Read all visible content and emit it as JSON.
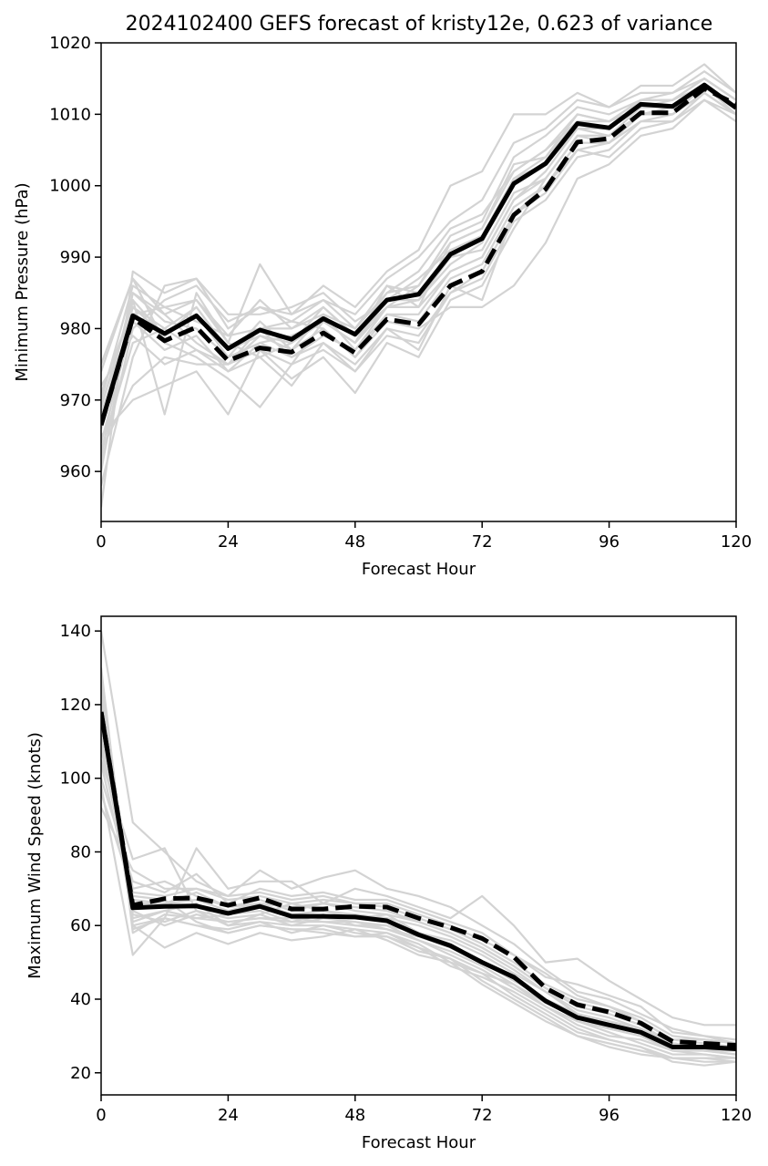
{
  "title": "2024102400 GEFS forecast of kristy12e, 0.623 of variance",
  "colors": {
    "member": "#d3d3d3",
    "highlight": "#000000",
    "frame": "#000000"
  },
  "chart_data": [
    {
      "type": "line",
      "xlabel": "Forecast Hour",
      "ylabel": "Minimum Pressure (hPa)",
      "xlim": [
        0,
        120
      ],
      "ylim": [
        953,
        1020
      ],
      "xticks": [
        0,
        24,
        48,
        72,
        96,
        120
      ],
      "yticks": [
        960,
        970,
        980,
        990,
        1000,
        1010,
        1020
      ],
      "x": [
        0,
        6,
        12,
        18,
        24,
        30,
        36,
        42,
        48,
        54,
        60,
        66,
        72,
        78,
        84,
        90,
        96,
        102,
        108,
        114,
        120
      ],
      "series": [
        {
          "style": "solid",
          "values": [
            966.5,
            981.8,
            979.3,
            981.8,
            977.2,
            979.8,
            978.5,
            981.4,
            979.2,
            984.0,
            984.8,
            990.4,
            992.6,
            1000.3,
            1003.1,
            1008.7,
            1008.1,
            1011.4,
            1011.1,
            1014.1,
            1010.9
          ]
        },
        {
          "style": "dashed",
          "values": [
            966.5,
            981.5,
            978.3,
            980.2,
            975.5,
            977.3,
            976.7,
            979.4,
            976.6,
            981.3,
            980.6,
            986.0,
            988.0,
            995.9,
            999.5,
            1006.1,
            1006.6,
            1010.2,
            1010.2,
            1013.6,
            1011.4
          ]
        },
        {
          "style": "member",
          "values": [
            955,
            988,
            985,
            987,
            980,
            983,
            982,
            984,
            982,
            987,
            990,
            995,
            998,
            1006,
            1008,
            1012,
            1011,
            1013,
            1013,
            1016,
            1013
          ]
        },
        {
          "style": "member",
          "values": [
            960,
            984,
            968,
            985,
            978,
            976,
            978,
            983,
            979,
            983,
            986,
            993,
            995,
            1004,
            1007,
            1011,
            1010,
            1012,
            1013,
            1015,
            1012
          ]
        },
        {
          "style": "member",
          "values": [
            963,
            972,
            976,
            975,
            975,
            980,
            981,
            980,
            976,
            982,
            982,
            988,
            990,
            998,
            1002,
            1008,
            1008,
            1011,
            1011,
            1014,
            1011
          ]
        },
        {
          "style": "member",
          "values": [
            970,
            986,
            983,
            984,
            978,
            989,
            982,
            986,
            983,
            988,
            991,
            1000,
            1002,
            1010,
            1010,
            1013,
            1011,
            1014,
            1014,
            1017,
            1013
          ]
        },
        {
          "style": "member",
          "values": [
            975,
            987,
            978,
            976,
            973,
            969,
            975,
            981,
            978,
            986,
            983,
            992,
            994,
            1003,
            1004,
            1009,
            1009,
            1011,
            1012,
            1015,
            1012
          ]
        },
        {
          "style": "member",
          "values": [
            965,
            970,
            972,
            974,
            968,
            977,
            973,
            976,
            971,
            978,
            976,
            984,
            986,
            994,
            1001,
            1007,
            1007,
            1010,
            1010,
            1014,
            1010
          ]
        },
        {
          "style": "member",
          "values": [
            968,
            982,
            983,
            981,
            979,
            984,
            980,
            982,
            980,
            985,
            988,
            994,
            996,
            1002,
            1005,
            1009,
            1008,
            1012,
            1012,
            1014,
            1011
          ]
        },
        {
          "style": "member",
          "values": [
            962,
            985,
            981,
            980,
            976,
            978,
            979,
            981,
            978,
            983,
            984,
            989,
            992,
            1001,
            1004,
            1010,
            1009,
            1012,
            1012,
            1015,
            1012
          ]
        },
        {
          "style": "member",
          "values": [
            972,
            979,
            975,
            977,
            974,
            976,
            972,
            978,
            974,
            980,
            977,
            986,
            984,
            996,
            999,
            1005,
            1006,
            1009,
            1010,
            1013,
            1010
          ]
        },
        {
          "style": "member",
          "values": [
            966,
            983,
            980,
            983,
            977,
            980,
            976,
            979,
            977,
            982,
            981,
            987,
            989,
            997,
            1000,
            1006,
            1006,
            1010,
            1010,
            1013,
            1010
          ]
        },
        {
          "style": "member",
          "values": [
            958,
            976,
            986,
            987,
            982,
            982,
            983,
            985,
            981,
            984,
            987,
            991,
            993,
            1001,
            1003,
            1008,
            1007,
            1011,
            1011,
            1014,
            1011
          ]
        },
        {
          "style": "member",
          "values": [
            974,
            987,
            982,
            978,
            975,
            979,
            977,
            980,
            976,
            981,
            980,
            983,
            983,
            986,
            992,
            1001,
            1003,
            1007,
            1008,
            1012,
            1009
          ]
        },
        {
          "style": "member",
          "values": [
            961,
            980,
            984,
            986,
            981,
            983,
            981,
            984,
            980,
            986,
            985,
            990,
            991,
            999,
            1001,
            1007,
            1006,
            1010,
            1010,
            1013,
            1010
          ]
        },
        {
          "style": "member",
          "values": [
            969,
            984,
            979,
            982,
            976,
            981,
            977,
            982,
            977,
            983,
            983,
            988,
            990,
            998,
            1001,
            1007,
            1007,
            1010,
            1011,
            1014,
            1011
          ]
        },
        {
          "style": "member",
          "values": [
            964,
            981,
            977,
            979,
            974,
            978,
            976,
            978,
            975,
            980,
            979,
            985,
            987,
            995,
            998,
            1004,
            1005,
            1009,
            1009,
            1012,
            1010
          ]
        },
        {
          "style": "member",
          "values": [
            967,
            985,
            982,
            984,
            979,
            980,
            980,
            983,
            979,
            985,
            986,
            992,
            994,
            1002,
            1005,
            1010,
            1009,
            1012,
            1012,
            1015,
            1012
          ]
        },
        {
          "style": "member",
          "values": [
            971,
            983,
            979,
            983,
            977,
            979,
            978,
            981,
            978,
            984,
            984,
            990,
            993,
            1001,
            1003,
            1009,
            1008,
            1011,
            1011,
            1014,
            1011
          ]
        },
        {
          "style": "member",
          "values": [
            963,
            978,
            980,
            977,
            975,
            977,
            975,
            977,
            974,
            979,
            978,
            985,
            988,
            996,
            1000,
            1005,
            1004,
            1008,
            1009,
            1013,
            1010
          ]
        }
      ]
    },
    {
      "type": "line",
      "xlabel": "Forecast Hour",
      "ylabel": "Maximum Wind Speed (knots)",
      "xlim": [
        0,
        120
      ],
      "ylim": [
        14,
        144
      ],
      "xticks": [
        0,
        24,
        48,
        72,
        96,
        120
      ],
      "yticks": [
        20,
        40,
        60,
        80,
        100,
        120,
        140
      ],
      "x": [
        0,
        6,
        12,
        18,
        24,
        30,
        36,
        42,
        48,
        54,
        60,
        66,
        72,
        78,
        84,
        90,
        96,
        102,
        108,
        114,
        120
      ],
      "series": [
        {
          "style": "solid",
          "values": [
            118,
            64.8,
            65.2,
            65.3,
            63.3,
            65.2,
            62.5,
            62.5,
            62.3,
            61.3,
            57.5,
            54.5,
            50.0,
            46.0,
            39.5,
            35.0,
            33.0,
            31.0,
            27.0,
            27.0,
            26.5
          ]
        },
        {
          "style": "dashed",
          "values": [
            118,
            65.5,
            67.3,
            67.5,
            65.5,
            67.5,
            64.5,
            64.5,
            65.2,
            65.0,
            62.0,
            59.5,
            56.5,
            51.5,
            43.0,
            38.5,
            36.5,
            33.5,
            28.5,
            28.0,
            27.5
          ]
        },
        {
          "style": "member",
          "values": [
            140,
            88,
            80,
            72,
            68,
            75,
            70,
            73,
            75,
            70,
            68,
            65,
            60,
            55,
            48,
            42,
            40,
            36,
            32,
            30,
            28
          ]
        },
        {
          "style": "member",
          "values": [
            98,
            52,
            62,
            81,
            70,
            72,
            72,
            66,
            70,
            68,
            65,
            62,
            68,
            60,
            50,
            51,
            45,
            40,
            35,
            33,
            33
          ]
        },
        {
          "style": "member",
          "values": [
            105,
            78,
            81,
            64,
            62,
            63,
            66,
            64,
            62,
            63,
            58,
            56,
            52,
            47,
            42,
            36,
            34,
            32,
            28,
            27,
            26
          ]
        },
        {
          "style": "member",
          "values": [
            120,
            60,
            54,
            58,
            55,
            58,
            56,
            57,
            59,
            58,
            55,
            50,
            47,
            44,
            38,
            33,
            30,
            29,
            26,
            25,
            24
          ]
        },
        {
          "style": "member",
          "values": [
            112,
            70,
            72,
            68,
            65,
            67,
            64,
            66,
            65,
            64,
            61,
            58,
            54,
            49,
            43,
            39,
            37,
            34,
            29,
            29,
            28
          ]
        },
        {
          "style": "member",
          "values": [
            115,
            62,
            64,
            66,
            60,
            61,
            60,
            60,
            58,
            57,
            53,
            51,
            45,
            40,
            35,
            30,
            27,
            25,
            24,
            24,
            24
          ]
        },
        {
          "style": "member",
          "values": [
            92,
            75,
            70,
            70,
            68,
            69,
            67,
            68,
            66,
            66,
            63,
            60,
            56,
            52,
            46,
            44,
            41,
            38,
            31,
            30,
            29
          ]
        },
        {
          "style": "member",
          "values": [
            125,
            64,
            60,
            63,
            61,
            62,
            62,
            61,
            61,
            59,
            56,
            52,
            48,
            43,
            38,
            34,
            31,
            28,
            25,
            25,
            24
          ]
        },
        {
          "style": "member",
          "values": [
            108,
            68,
            67,
            61,
            58,
            60,
            59,
            59,
            57,
            58,
            54,
            49,
            46,
            42,
            37,
            32,
            29,
            27,
            23,
            22,
            23
          ]
        },
        {
          "style": "member",
          "values": [
            130,
            58,
            63,
            62,
            63,
            64,
            61,
            63,
            60,
            60,
            58,
            55,
            50,
            46,
            40,
            36,
            33,
            31,
            27,
            26,
            25
          ]
        },
        {
          "style": "member",
          "values": [
            100,
            72,
            69,
            74,
            66,
            70,
            68,
            69,
            67,
            67,
            64,
            61,
            58,
            52,
            47,
            41,
            38,
            35,
            30,
            29,
            28
          ]
        },
        {
          "style": "member",
          "values": [
            118,
            60,
            62,
            60,
            59,
            61,
            58,
            60,
            59,
            56,
            52,
            50,
            44,
            39,
            34,
            30,
            28,
            26,
            24,
            23,
            23
          ]
        },
        {
          "style": "member",
          "values": [
            110,
            66,
            66,
            67,
            64,
            66,
            63,
            64,
            63,
            62,
            60,
            57,
            53,
            48,
            42,
            37,
            35,
            32,
            28,
            27,
            26
          ]
        },
        {
          "style": "member",
          "values": [
            122,
            63,
            61,
            64,
            60,
            63,
            60,
            62,
            61,
            60,
            56,
            53,
            49,
            44,
            39,
            35,
            32,
            30,
            26,
            26,
            25
          ]
        },
        {
          "style": "member",
          "values": [
            96,
            69,
            68,
            70,
            67,
            68,
            66,
            67,
            66,
            65,
            62,
            59,
            55,
            50,
            44,
            40,
            38,
            34,
            29,
            28,
            27
          ]
        },
        {
          "style": "member",
          "values": [
            116,
            61,
            64,
            62,
            61,
            62,
            61,
            61,
            60,
            59,
            57,
            54,
            50,
            45,
            40,
            34,
            32,
            30,
            27,
            26,
            26
          ]
        },
        {
          "style": "member",
          "values": [
            104,
            67,
            66,
            69,
            65,
            66,
            65,
            66,
            64,
            63,
            61,
            58,
            54,
            49,
            43,
            38,
            36,
            33,
            28,
            27,
            27
          ]
        },
        {
          "style": "member",
          "values": [
            128,
            59,
            62,
            60,
            58,
            60,
            59,
            58,
            57,
            57,
            54,
            51,
            47,
            41,
            36,
            31,
            29,
            27,
            24,
            24,
            23
          ]
        }
      ]
    }
  ]
}
